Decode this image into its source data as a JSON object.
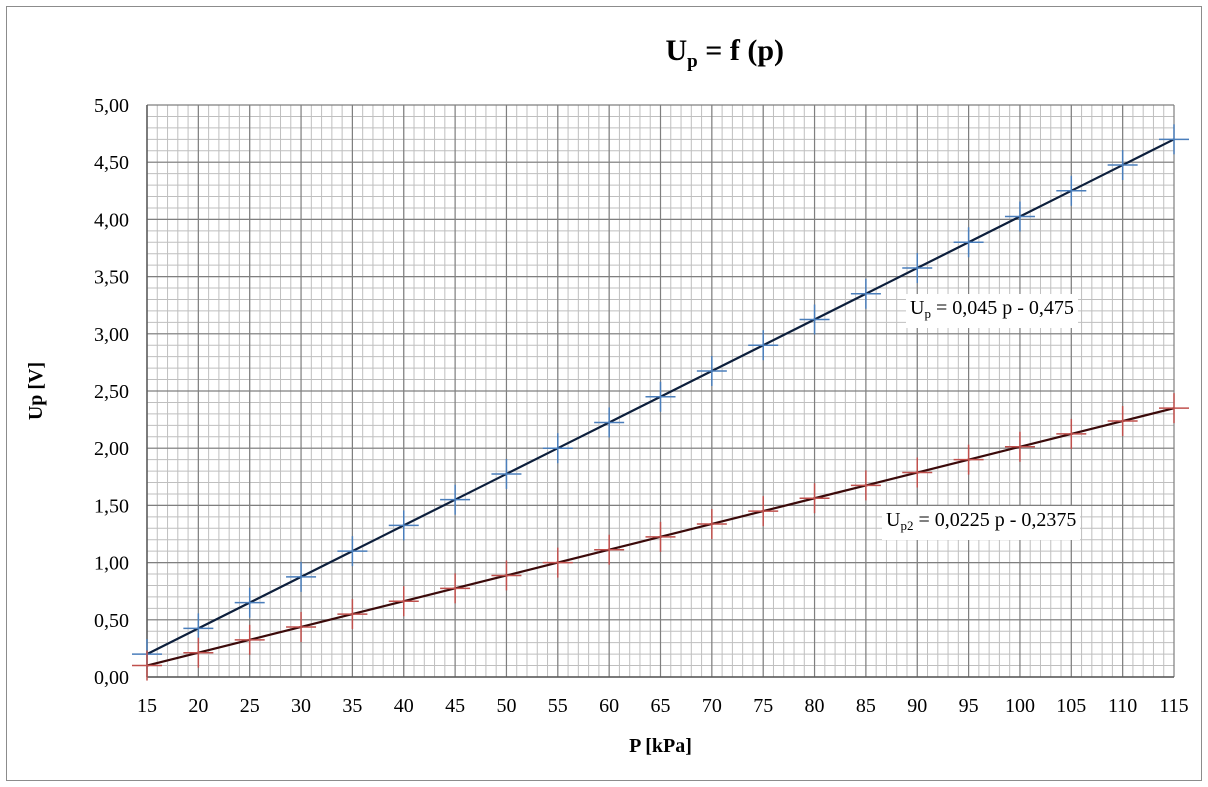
{
  "chart_data": {
    "type": "line",
    "title": {
      "main": "U",
      "sub": "p",
      "rest": " = f (p)"
    },
    "xlabel": "P [kPa]",
    "ylabel": "Up [V]",
    "xlim": [
      15,
      115
    ],
    "ylim": [
      0,
      5
    ],
    "x_ticks": [
      "15",
      "20",
      "25",
      "30",
      "35",
      "40",
      "45",
      "50",
      "55",
      "60",
      "65",
      "70",
      "75",
      "80",
      "85",
      "90",
      "95",
      "100",
      "105",
      "110",
      "115"
    ],
    "y_ticks": [
      "0,00",
      "0,50",
      "1,00",
      "1,50",
      "2,00",
      "2,50",
      "3,00",
      "3,50",
      "4,00",
      "4,50",
      "5,00"
    ],
    "grid": true,
    "series": [
      {
        "x": [
          15,
          20,
          25,
          30,
          35,
          40,
          45,
          50,
          55,
          60,
          65,
          70,
          75,
          80,
          85,
          90,
          95,
          100,
          105,
          110,
          115
        ],
        "y": [
          0.2,
          0.425,
          0.65,
          0.875,
          1.1,
          1.325,
          1.55,
          1.775,
          2.0,
          2.225,
          2.45,
          2.675,
          2.9,
          3.125,
          3.35,
          3.575,
          3.8,
          4.025,
          4.25,
          4.475,
          4.7
        ],
        "marker_color": "#4a7ebb",
        "line_color": "#0d1f3c",
        "equation": {
          "pre": "U",
          "sub": "p",
          "rest": " = 0,045 p - 0,475"
        }
      },
      {
        "x": [
          15,
          20,
          25,
          30,
          35,
          40,
          45,
          50,
          55,
          60,
          65,
          70,
          75,
          80,
          85,
          90,
          95,
          100,
          105,
          110,
          115
        ],
        "y": [
          0.1,
          0.2125,
          0.325,
          0.4375,
          0.55,
          0.6625,
          0.775,
          0.8875,
          1.0,
          1.1125,
          1.225,
          1.3375,
          1.45,
          1.5625,
          1.675,
          1.7875,
          1.9,
          2.0125,
          2.125,
          2.2375,
          2.35
        ],
        "marker_color": "#c0504d",
        "line_color": "#3b0a0a",
        "equation": {
          "pre": "U",
          "sub": "p2",
          "rest": " = 0,0225 p - 0,2375"
        }
      }
    ]
  }
}
